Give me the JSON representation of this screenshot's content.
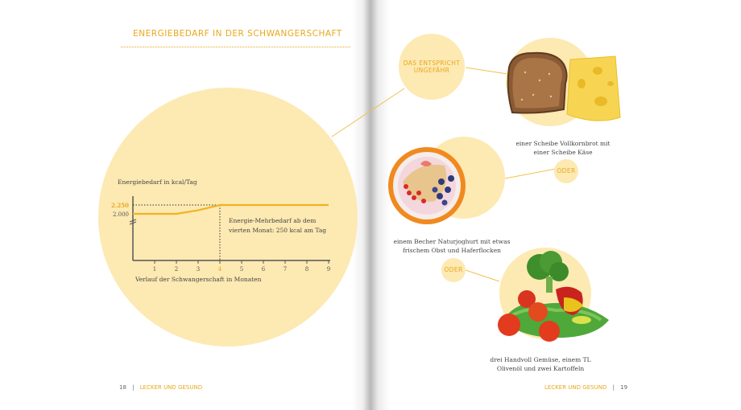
{
  "left_page": {
    "headline": "ENERGIEBEDARF IN DER SCHWANGERSCHAFT",
    "annotation_line1": "Energie-Mehrbedarf ab dem",
    "annotation_line2": "vierten Monat: 250 kcal am Tag",
    "footer_number": "18",
    "footer_separator": "|",
    "footer_label": "LECKER UND GESUND"
  },
  "right_page": {
    "bubble_line1": "DAS ENTSPRICHT",
    "bubble_line2": "UNGEFÄHR",
    "item1_line1": "einer Scheibe Vollkornbrot mit",
    "item1_line2": "einer Scheibe Käse",
    "or1": "ODER",
    "item2_line1": "einem Becher Naturjoghurt mit etwas",
    "item2_line2": "frischem Obst und Haferflocken",
    "or2": "ODER",
    "item3_line1": "drei Handvoll Gemüse, einem TL",
    "item3_line2": "Olivenöl und zwei Kartoffeln",
    "footer_label": "LECKER UND GESUND",
    "footer_separator": "|",
    "footer_number": "19"
  },
  "icons": [
    "bread-slice-icon",
    "cheese-icon",
    "yogurt-bowl-icon",
    "vegetables-icon"
  ],
  "colors": {
    "accent": "#e8a81e",
    "circle": "#fde9b2",
    "line": "#f0b321"
  },
  "chart_data": {
    "type": "line",
    "ylabel": "Energiebedarf in kcal/Tag",
    "xlabel": "Verlauf der Schwangerschaft in Monaten",
    "x_ticks": [
      "1",
      "2",
      "3",
      "4",
      "5",
      "6",
      "7",
      "8",
      "9"
    ],
    "y_ticks": [
      "2.000",
      "2.250"
    ],
    "highlight_x": "4",
    "highlight_y": "2.250",
    "x": [
      0,
      1,
      2,
      3,
      4,
      5,
      6,
      7,
      8,
      9
    ],
    "y": [
      2000,
      2000,
      2000,
      2100,
      2250,
      2250,
      2250,
      2250,
      2250,
      2250
    ],
    "xlim": [
      0,
      9
    ],
    "ylim": [
      0,
      2250
    ]
  }
}
